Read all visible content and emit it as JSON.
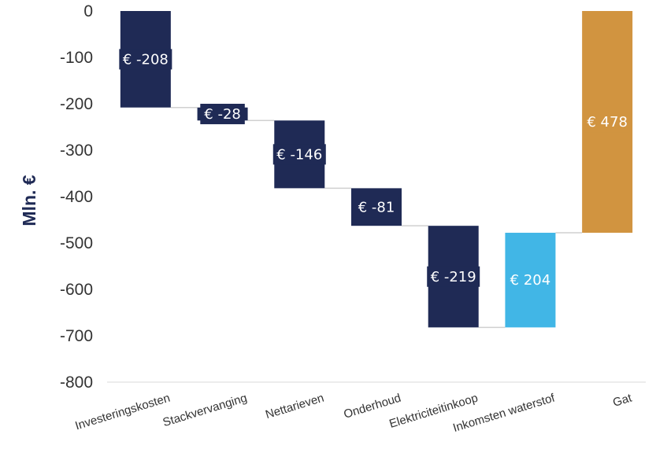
{
  "chart_data": {
    "type": "bar",
    "subtype": "waterfall",
    "ylabel": "Mln. €",
    "ylim": [
      -800,
      0
    ],
    "yticks": [
      0,
      -100,
      -200,
      -300,
      -400,
      -500,
      -600,
      -700,
      -800
    ],
    "categories": [
      "Investeringskosten",
      "Stackvervanging",
      "Nettarieven",
      "Onderhoud",
      "Elektriciteitinkoop",
      "Inkomsten waterstof",
      "Gat"
    ],
    "values": [
      -208,
      -28,
      -146,
      -81,
      -219,
      204,
      478
    ],
    "data_labels": [
      "€ -208",
      "€ -28",
      "€ -146",
      "€ -81",
      "€ -219",
      "€ 204",
      "€ 478"
    ],
    "colors": [
      "#1f2a55",
      "#1f2a55",
      "#1f2a55",
      "#1f2a55",
      "#1f2a55",
      "#41b6e6",
      "#d19440"
    ],
    "connector_color": "#d0d0d0",
    "grid": false,
    "legend": "none"
  }
}
